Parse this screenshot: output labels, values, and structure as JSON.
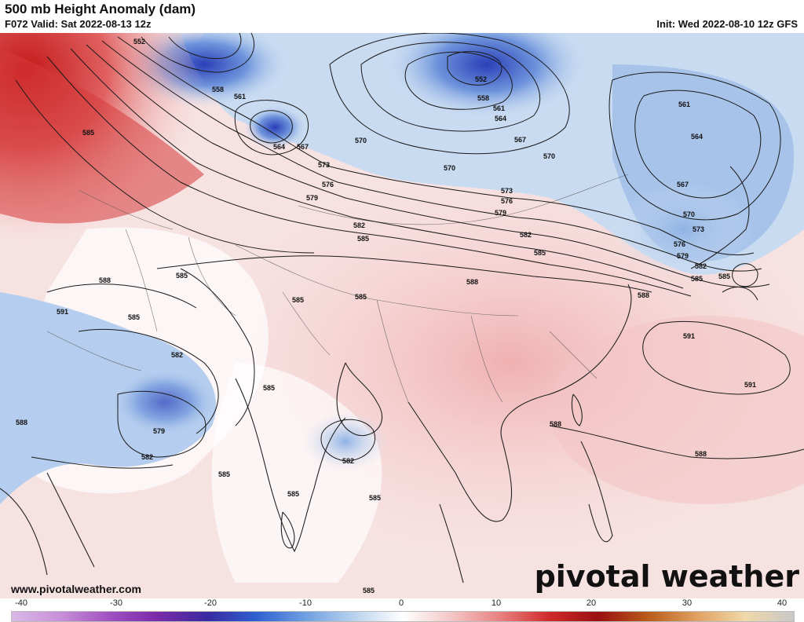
{
  "header": {
    "title": "500 mb Height Anomaly (dam)",
    "valid": "F072 Valid: Sat 2022-08-13 12z",
    "init": "Init: Wed 2022-08-10 12z GFS"
  },
  "footer": {
    "url": "www.pivotalweather.com",
    "logo": "pivotal weather"
  },
  "colorbar": {
    "ticks": [
      "-40",
      "-30",
      "-20",
      "-10",
      "0",
      "10",
      "20",
      "30",
      "40"
    ],
    "stops": [
      "#d9b8e6",
      "#c78fd8",
      "#a050c0",
      "#7a2aa8",
      "#3a2aa0",
      "#2f5fd0",
      "#6f9fe0",
      "#b8d2ee",
      "#ffffff",
      "#f4c6c6",
      "#e88080",
      "#d02a2a",
      "#9a1010",
      "#b85a1a",
      "#e0a060",
      "#f0d8a8",
      "#c8c8c8"
    ]
  },
  "contours": {
    "labels": [
      {
        "t": "552"
      },
      {
        "t": "558"
      },
      {
        "t": "561"
      },
      {
        "t": "564"
      },
      {
        "t": "567"
      },
      {
        "t": "570"
      },
      {
        "t": "573"
      },
      {
        "t": "576"
      },
      {
        "t": "579"
      },
      {
        "t": "582"
      },
      {
        "t": "585"
      },
      {
        "t": "585"
      },
      {
        "t": "588"
      },
      {
        "t": "591"
      },
      {
        "t": "585"
      },
      {
        "t": "582"
      },
      {
        "t": "579"
      },
      {
        "t": "582"
      },
      {
        "t": "588"
      },
      {
        "t": "585"
      },
      {
        "t": "585"
      },
      {
        "t": "585"
      },
      {
        "t": "582"
      },
      {
        "t": "585"
      },
      {
        "t": "585"
      },
      {
        "t": "585"
      },
      {
        "t": "585"
      },
      {
        "t": "552"
      },
      {
        "t": "558"
      },
      {
        "t": "561"
      },
      {
        "t": "564"
      },
      {
        "t": "567"
      },
      {
        "t": "570"
      },
      {
        "t": "573"
      },
      {
        "t": "576"
      },
      {
        "t": "579"
      },
      {
        "t": "582"
      },
      {
        "t": "585"
      },
      {
        "t": "588"
      },
      {
        "t": "585"
      },
      {
        "t": "561"
      },
      {
        "t": "564"
      },
      {
        "t": "567"
      },
      {
        "t": "570"
      },
      {
        "t": "573"
      },
      {
        "t": "576"
      },
      {
        "t": "579"
      },
      {
        "t": "582"
      },
      {
        "t": "585"
      },
      {
        "t": "588"
      },
      {
        "t": "591"
      },
      {
        "t": "591"
      },
      {
        "t": "588"
      },
      {
        "t": "588"
      },
      {
        "t": "570"
      },
      {
        "t": "585"
      }
    ]
  }
}
